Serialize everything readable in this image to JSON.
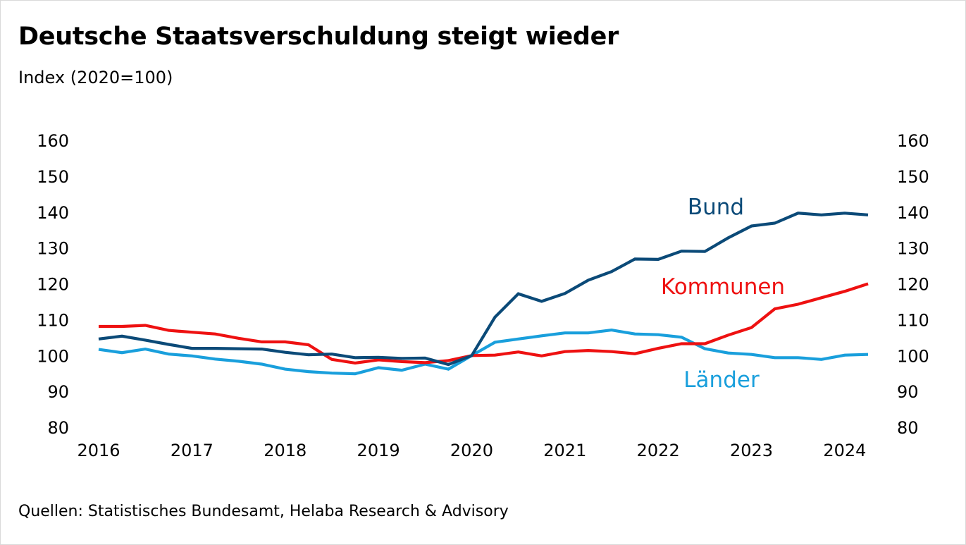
{
  "header": {
    "title": "Deutsche Staatsverschuldung steigt wieder",
    "subtitle": "Index (2020=100)"
  },
  "footer": {
    "source": "Quellen: Statistisches Bundesamt, Helaba Research & Advisory"
  },
  "colors": {
    "Bund": "#0b4a78",
    "Kommunen": "#ee1111",
    "Länder": "#199fdc"
  },
  "chart_data": {
    "type": "line",
    "title": "Deutsche Staatsverschuldung steigt wieder",
    "ylabel": "Index (2020=100)",
    "xlabel": "",
    "ylim": [
      80,
      160
    ],
    "y_ticks": [
      80,
      90,
      100,
      110,
      120,
      130,
      140,
      150,
      160
    ],
    "y_tick_labels": [
      "80",
      "90",
      "100",
      "110",
      "120",
      "130",
      "140",
      "150",
      "160"
    ],
    "x_range": [
      2016.0,
      2024.5
    ],
    "x_ticks": [
      2016,
      2017,
      2018,
      2019,
      2020,
      2021,
      2022,
      2023,
      2024
    ],
    "x_tick_labels": [
      "2016",
      "2017",
      "2018",
      "2019",
      "2020",
      "2021",
      "2022",
      "2023",
      "2024"
    ],
    "x": [
      2016.0,
      2016.25,
      2016.5,
      2016.75,
      2017.0,
      2017.25,
      2017.5,
      2017.75,
      2018.0,
      2018.25,
      2018.5,
      2018.75,
      2019.0,
      2019.25,
      2019.5,
      2019.75,
      2020.0,
      2020.25,
      2020.5,
      2020.75,
      2021.0,
      2021.25,
      2021.5,
      2021.75,
      2022.0,
      2022.25,
      2022.5,
      2022.75,
      2023.0,
      2023.25,
      2023.5,
      2023.75,
      2024.0,
      2024.25
    ],
    "series": [
      {
        "name": "Bund",
        "label": "Bund",
        "values": [
          104.6,
          105.4,
          104.3,
          103.1,
          102.0,
          102.0,
          101.9,
          101.8,
          100.9,
          100.2,
          100.4,
          99.4,
          99.5,
          99.2,
          99.3,
          97.5,
          100.0,
          110.7,
          117.2,
          115.1,
          117.3,
          121.0,
          123.4,
          126.9,
          126.8,
          129.1,
          129.0,
          132.8,
          136.1,
          136.9,
          139.7,
          139.2,
          139.7,
          139.2
        ]
      },
      {
        "name": "Kommunen",
        "label": "Kommunen",
        "values": [
          108.1,
          108.1,
          108.4,
          107.0,
          106.5,
          106.0,
          104.8,
          103.8,
          103.8,
          103.0,
          98.9,
          97.9,
          98.8,
          98.3,
          98.0,
          98.6,
          100.0,
          100.1,
          101.0,
          99.9,
          101.1,
          101.4,
          101.1,
          100.5,
          102.0,
          103.3,
          103.3,
          105.7,
          107.8,
          113.0,
          114.3,
          116.1,
          117.9,
          120.0
        ]
      },
      {
        "name": "Länder",
        "label": "Länder",
        "values": [
          101.7,
          100.8,
          101.8,
          100.4,
          99.9,
          99.0,
          98.4,
          97.6,
          96.2,
          95.5,
          95.1,
          94.9,
          96.6,
          95.9,
          97.6,
          96.2,
          100.0,
          103.7,
          104.6,
          105.5,
          106.3,
          106.3,
          107.1,
          106.0,
          105.8,
          105.1,
          101.9,
          100.7,
          100.3,
          99.4,
          99.4,
          98.9,
          100.1,
          100.3
        ]
      }
    ],
    "legend": "inline labels next to lines",
    "grid": false
  }
}
